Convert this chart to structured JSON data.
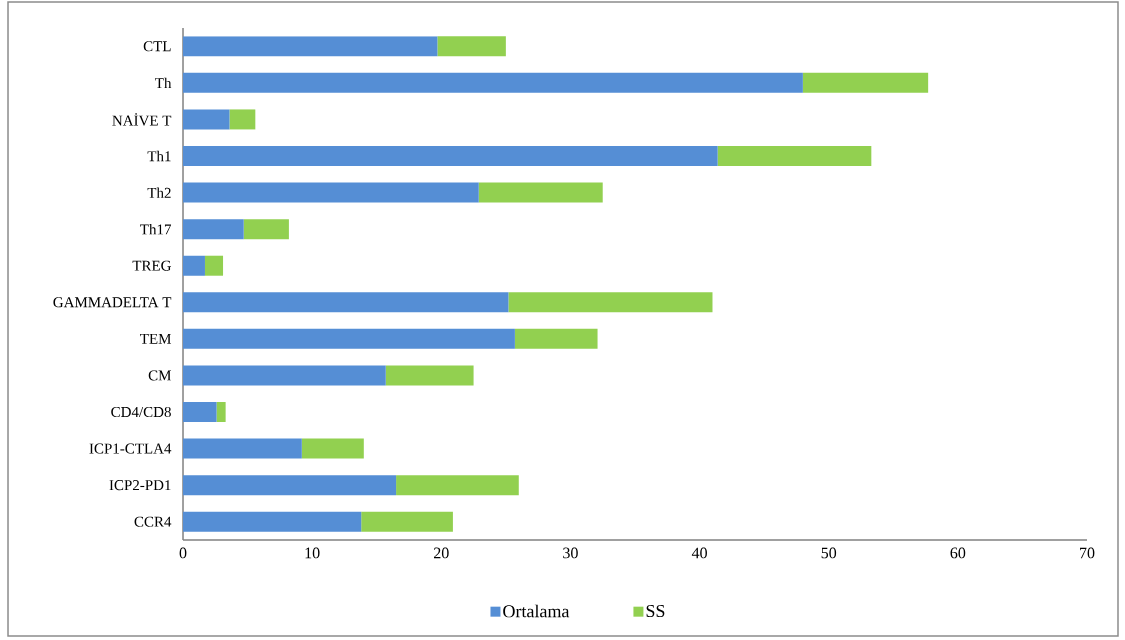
{
  "chart_data": {
    "type": "bar",
    "orientation": "horizontal",
    "stacked": true,
    "categories": [
      "CTL",
      "Th",
      "NAİVE T",
      "Th1",
      "Th2",
      "Th17",
      "TREG",
      "GAMMADELTA T",
      "TEM",
      "CM",
      "CD4/CD8",
      "ICP1-CTLA4",
      "ICP2-PD1",
      "CCR4"
    ],
    "series": [
      {
        "name": "Ortalama",
        "color": "#558ed5",
        "values": [
          19.7,
          48.0,
          3.6,
          41.4,
          22.9,
          4.7,
          1.7,
          25.2,
          25.7,
          15.7,
          2.6,
          9.2,
          16.5,
          13.8
        ]
      },
      {
        "name": "SS",
        "color": "#92d050",
        "values": [
          5.3,
          9.7,
          2.0,
          11.9,
          9.6,
          3.5,
          1.4,
          15.8,
          6.4,
          6.8,
          0.7,
          4.8,
          9.5,
          7.1
        ]
      }
    ],
    "xlim": [
      0,
      70
    ],
    "xticks": [
      0,
      10,
      20,
      30,
      40,
      50,
      60,
      70
    ],
    "legend": "bottom"
  }
}
